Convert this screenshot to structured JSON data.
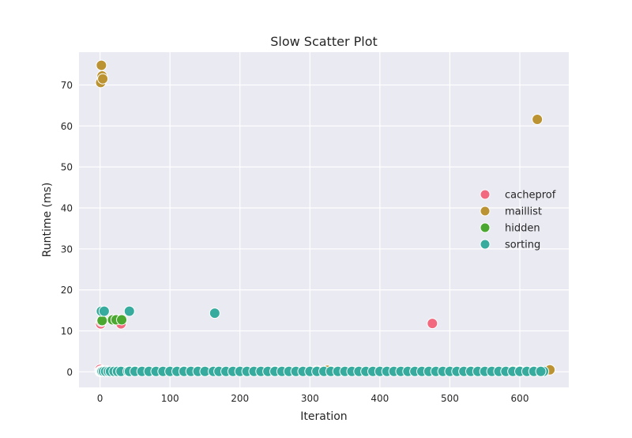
{
  "chart_data": {
    "type": "scatter",
    "title": "Slow Scatter Plot",
    "xlabel": "Iteration",
    "ylabel": "Runtime (ms)",
    "xlim": [
      -30,
      670
    ],
    "ylim": [
      -3.8,
      78
    ],
    "xticks": [
      0,
      100,
      200,
      300,
      400,
      500,
      600
    ],
    "yticks": [
      0,
      10,
      20,
      30,
      40,
      50,
      60,
      70
    ],
    "grid": true,
    "legend_position": "center-right",
    "background_color": "#eaeaf2",
    "series": [
      {
        "name": "cacheprof",
        "color": "#f2697f",
        "points": [
          [
            1,
            11.7
          ],
          [
            2,
            12.3
          ],
          [
            30,
            11.7
          ],
          [
            475,
            11.8
          ],
          [
            0,
            0.6
          ],
          [
            3,
            0.3
          ],
          [
            10,
            0.2
          ],
          [
            120,
            0.2
          ],
          [
            250,
            0.2
          ],
          [
            330,
            0.2
          ],
          [
            530,
            0.2
          ],
          [
            600,
            0.3
          ]
        ]
      },
      {
        "name": "maillist",
        "color": "#bb9332",
        "points": [
          [
            2,
            74.8
          ],
          [
            3,
            72.2
          ],
          [
            1,
            70.6
          ],
          [
            4,
            71.5
          ],
          [
            625,
            61.6
          ],
          [
            643,
            0.5
          ],
          [
            310,
            0.3
          ],
          [
            325,
            0.4
          ],
          [
            590,
            0.3
          ],
          [
            600,
            0.2
          ],
          [
            620,
            0.2
          ]
        ]
      },
      {
        "name": "hidden",
        "color": "#4aa72f",
        "points": [
          [
            3,
            12.5
          ],
          [
            18,
            12.7
          ],
          [
            23,
            12.7
          ],
          [
            31,
            12.7
          ],
          [
            1,
            0.2
          ],
          [
            50,
            0.2
          ],
          [
            140,
            0.2
          ]
        ]
      },
      {
        "name": "sorting",
        "color": "#37ab9d",
        "points": [
          [
            2,
            14.8
          ],
          [
            6,
            14.8
          ],
          [
            42,
            14.8
          ],
          [
            164,
            14.3
          ],
          [
            634,
            0.1
          ],
          [
            0,
            0.1
          ],
          [
            1,
            0.1
          ],
          [
            2,
            0.1
          ],
          [
            3,
            0.1
          ],
          [
            5,
            0.1
          ],
          [
            8,
            0.1
          ],
          [
            12,
            0.1
          ],
          [
            15,
            0.1
          ],
          [
            20,
            0.1
          ],
          [
            25,
            0.1
          ],
          [
            30,
            0.1
          ],
          [
            40,
            0.1
          ],
          [
            42,
            0.1
          ],
          [
            50,
            0.1
          ],
          [
            60,
            0.1
          ],
          [
            70,
            0.1
          ],
          [
            80,
            0.1
          ],
          [
            90,
            0.1
          ],
          [
            100,
            0.1
          ],
          [
            110,
            0.1
          ],
          [
            120,
            0.1
          ],
          [
            130,
            0.1
          ],
          [
            140,
            0.1
          ],
          [
            150,
            0.1
          ],
          [
            162,
            0.1
          ],
          [
            170,
            0.1
          ],
          [
            180,
            0.1
          ],
          [
            190,
            0.1
          ],
          [
            200,
            0.1
          ],
          [
            210,
            0.1
          ],
          [
            220,
            0.1
          ],
          [
            230,
            0.1
          ],
          [
            240,
            0.1
          ],
          [
            250,
            0.1
          ],
          [
            260,
            0.1
          ],
          [
            270,
            0.1
          ],
          [
            280,
            0.1
          ],
          [
            290,
            0.1
          ],
          [
            300,
            0.1
          ],
          [
            310,
            0.1
          ],
          [
            320,
            0.1
          ],
          [
            330,
            0.1
          ],
          [
            340,
            0.1
          ],
          [
            350,
            0.1
          ],
          [
            360,
            0.1
          ],
          [
            370,
            0.1
          ],
          [
            380,
            0.1
          ],
          [
            390,
            0.1
          ],
          [
            400,
            0.1
          ],
          [
            410,
            0.1
          ],
          [
            420,
            0.1
          ],
          [
            430,
            0.1
          ],
          [
            440,
            0.1
          ],
          [
            450,
            0.1
          ],
          [
            460,
            0.1
          ],
          [
            470,
            0.1
          ],
          [
            480,
            0.1
          ],
          [
            490,
            0.1
          ],
          [
            500,
            0.1
          ],
          [
            510,
            0.1
          ],
          [
            520,
            0.1
          ],
          [
            530,
            0.1
          ],
          [
            540,
            0.1
          ],
          [
            550,
            0.1
          ],
          [
            560,
            0.1
          ],
          [
            570,
            0.1
          ],
          [
            580,
            0.1
          ],
          [
            590,
            0.1
          ],
          [
            600,
            0.1
          ],
          [
            610,
            0.1
          ],
          [
            620,
            0.1
          ],
          [
            630,
            0.1
          ]
        ]
      }
    ]
  }
}
